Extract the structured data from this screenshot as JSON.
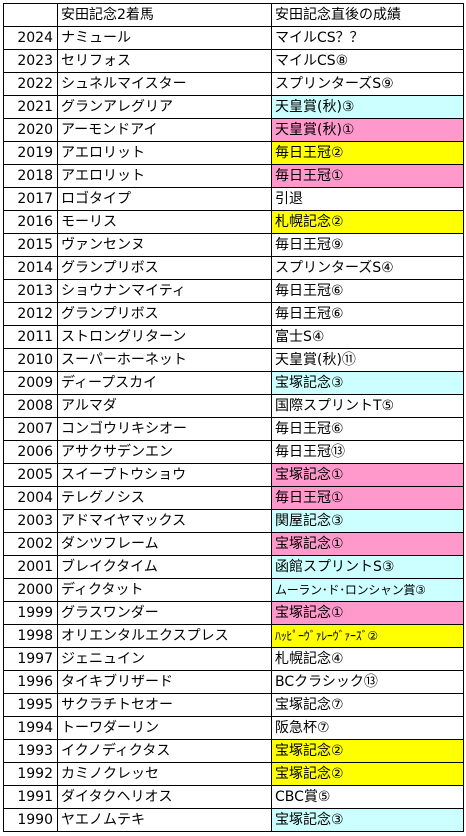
{
  "header": {
    "year": "",
    "horse": "安田記念2着馬",
    "result": "安田記念直後の成績"
  },
  "colors": {
    "blue": "#ccffff",
    "pink": "#ff99cc",
    "yellow": "#ffff00"
  },
  "rows": [
    {
      "year": "2024",
      "horse": "ナミュール",
      "result": "マイルCS？？",
      "hl": ""
    },
    {
      "year": "2023",
      "horse": "セリフォス",
      "result": "マイルCS⑧",
      "hl": ""
    },
    {
      "year": "2022",
      "horse": "シュネルマイスター",
      "result": "スプリンターズS⑨",
      "hl": ""
    },
    {
      "year": "2021",
      "horse": "グランアレグリア",
      "result": "天皇賞(秋)③",
      "hl": "blue"
    },
    {
      "year": "2020",
      "horse": "アーモンドアイ",
      "result": "天皇賞(秋)①",
      "hl": "pink"
    },
    {
      "year": "2019",
      "horse": "アエロリット",
      "result": "毎日王冠②",
      "hl": "yellow"
    },
    {
      "year": "2018",
      "horse": "アエロリット",
      "result": "毎日王冠①",
      "hl": "pink"
    },
    {
      "year": "2017",
      "horse": "ロゴタイプ",
      "result": "引退",
      "hl": ""
    },
    {
      "year": "2016",
      "horse": "モーリス",
      "result": "札幌記念②",
      "hl": "yellow"
    },
    {
      "year": "2015",
      "horse": "ヴァンセンヌ",
      "result": "毎日王冠⑨",
      "hl": ""
    },
    {
      "year": "2014",
      "horse": "グランプリボス",
      "result": "スプリンターズS④",
      "hl": ""
    },
    {
      "year": "2013",
      "horse": "ショウナンマイティ",
      "result": "毎日王冠⑥",
      "hl": ""
    },
    {
      "year": "2012",
      "horse": "グランプリボス",
      "result": "毎日王冠⑥",
      "hl": ""
    },
    {
      "year": "2011",
      "horse": "ストロングリターン",
      "result": "富士S④",
      "hl": ""
    },
    {
      "year": "2010",
      "horse": "スーパーホーネット",
      "result": "天皇賞(秋)⑪",
      "hl": ""
    },
    {
      "year": "2009",
      "horse": "ディープスカイ",
      "result": "宝塚記念③",
      "hl": "blue"
    },
    {
      "year": "2008",
      "horse": "アルマダ",
      "result": "国際スプリントT⑤",
      "hl": ""
    },
    {
      "year": "2007",
      "horse": "コンゴウリキシオー",
      "result": "毎日王冠⑥",
      "hl": ""
    },
    {
      "year": "2006",
      "horse": "アサクサデンエン",
      "result": "毎日王冠⑬",
      "hl": ""
    },
    {
      "year": "2005",
      "horse": "スイープトウショウ",
      "result": "宝塚記念①",
      "hl": "pink"
    },
    {
      "year": "2004",
      "horse": "テレグノシス",
      "result": "毎日王冠①",
      "hl": "pink"
    },
    {
      "year": "2003",
      "horse": "アドマイヤマックス",
      "result": "関屋記念③",
      "hl": "blue"
    },
    {
      "year": "2002",
      "horse": "ダンツフレーム",
      "result": "宝塚記念①",
      "hl": "pink"
    },
    {
      "year": "2001",
      "horse": "ブレイクタイム",
      "result": "函館スプリントS③",
      "hl": "blue"
    },
    {
      "year": "2000",
      "horse": "ディクタット",
      "result": "ムーラン･ド･ロンシャン賞③",
      "hl": "blue",
      "narrow": true
    },
    {
      "year": "1999",
      "horse": "グラスワンダー",
      "result": "宝塚記念①",
      "hl": "pink"
    },
    {
      "year": "1998",
      "horse": "オリエンタルエクスプレス",
      "result": "ﾊｯﾋﾟｰｳﾞｧﾚｰｳﾞｧｰｽﾞ②",
      "hl": "yellow",
      "narrow": true
    },
    {
      "year": "1997",
      "horse": "ジェニュイン",
      "result": "札幌記念④",
      "hl": ""
    },
    {
      "year": "1996",
      "horse": "タイキブリザード",
      "result": "BCクラシック⑬",
      "hl": ""
    },
    {
      "year": "1995",
      "horse": "サクラチトセオー",
      "result": "宝塚記念⑦",
      "hl": ""
    },
    {
      "year": "1994",
      "horse": "トーワダーリン",
      "result": "阪急杯⑦",
      "hl": ""
    },
    {
      "year": "1993",
      "horse": "イクノディクタス",
      "result": "宝塚記念②",
      "hl": "yellow"
    },
    {
      "year": "1992",
      "horse": "カミノクレッセ",
      "result": "宝塚記念②",
      "hl": "yellow"
    },
    {
      "year": "1991",
      "horse": "ダイタクヘリオス",
      "result": "CBC賞⑤",
      "hl": ""
    },
    {
      "year": "1990",
      "horse": "ヤエノムテキ",
      "result": "宝塚記念③",
      "hl": "blue"
    }
  ]
}
